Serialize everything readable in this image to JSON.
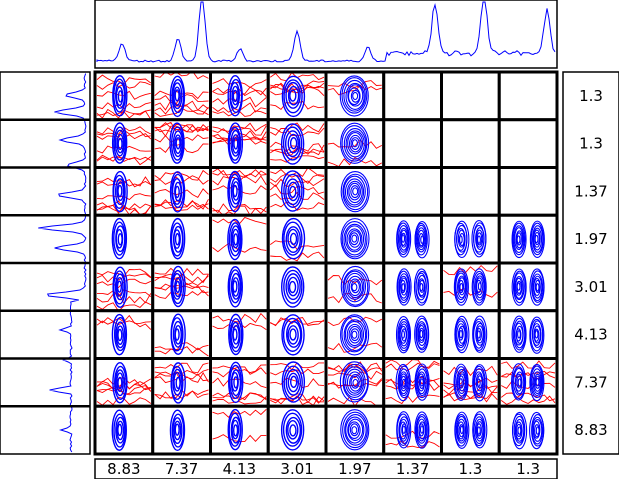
{
  "matrix": {
    "column_labels": [
      "8.83",
      "7.37",
      "4.13",
      "3.01",
      "1.97",
      "1.37",
      "1.3",
      "1.3"
    ],
    "row_labels": [
      "1.3",
      "1.3",
      "1.37",
      "1.97",
      "3.01",
      "4.13",
      "7.37",
      "8.83"
    ]
  },
  "colors": {
    "positive_contour": "#0000ff",
    "negative_contour": "#ff0000",
    "spectrum": "#0000ff",
    "frame": "#000000"
  }
}
